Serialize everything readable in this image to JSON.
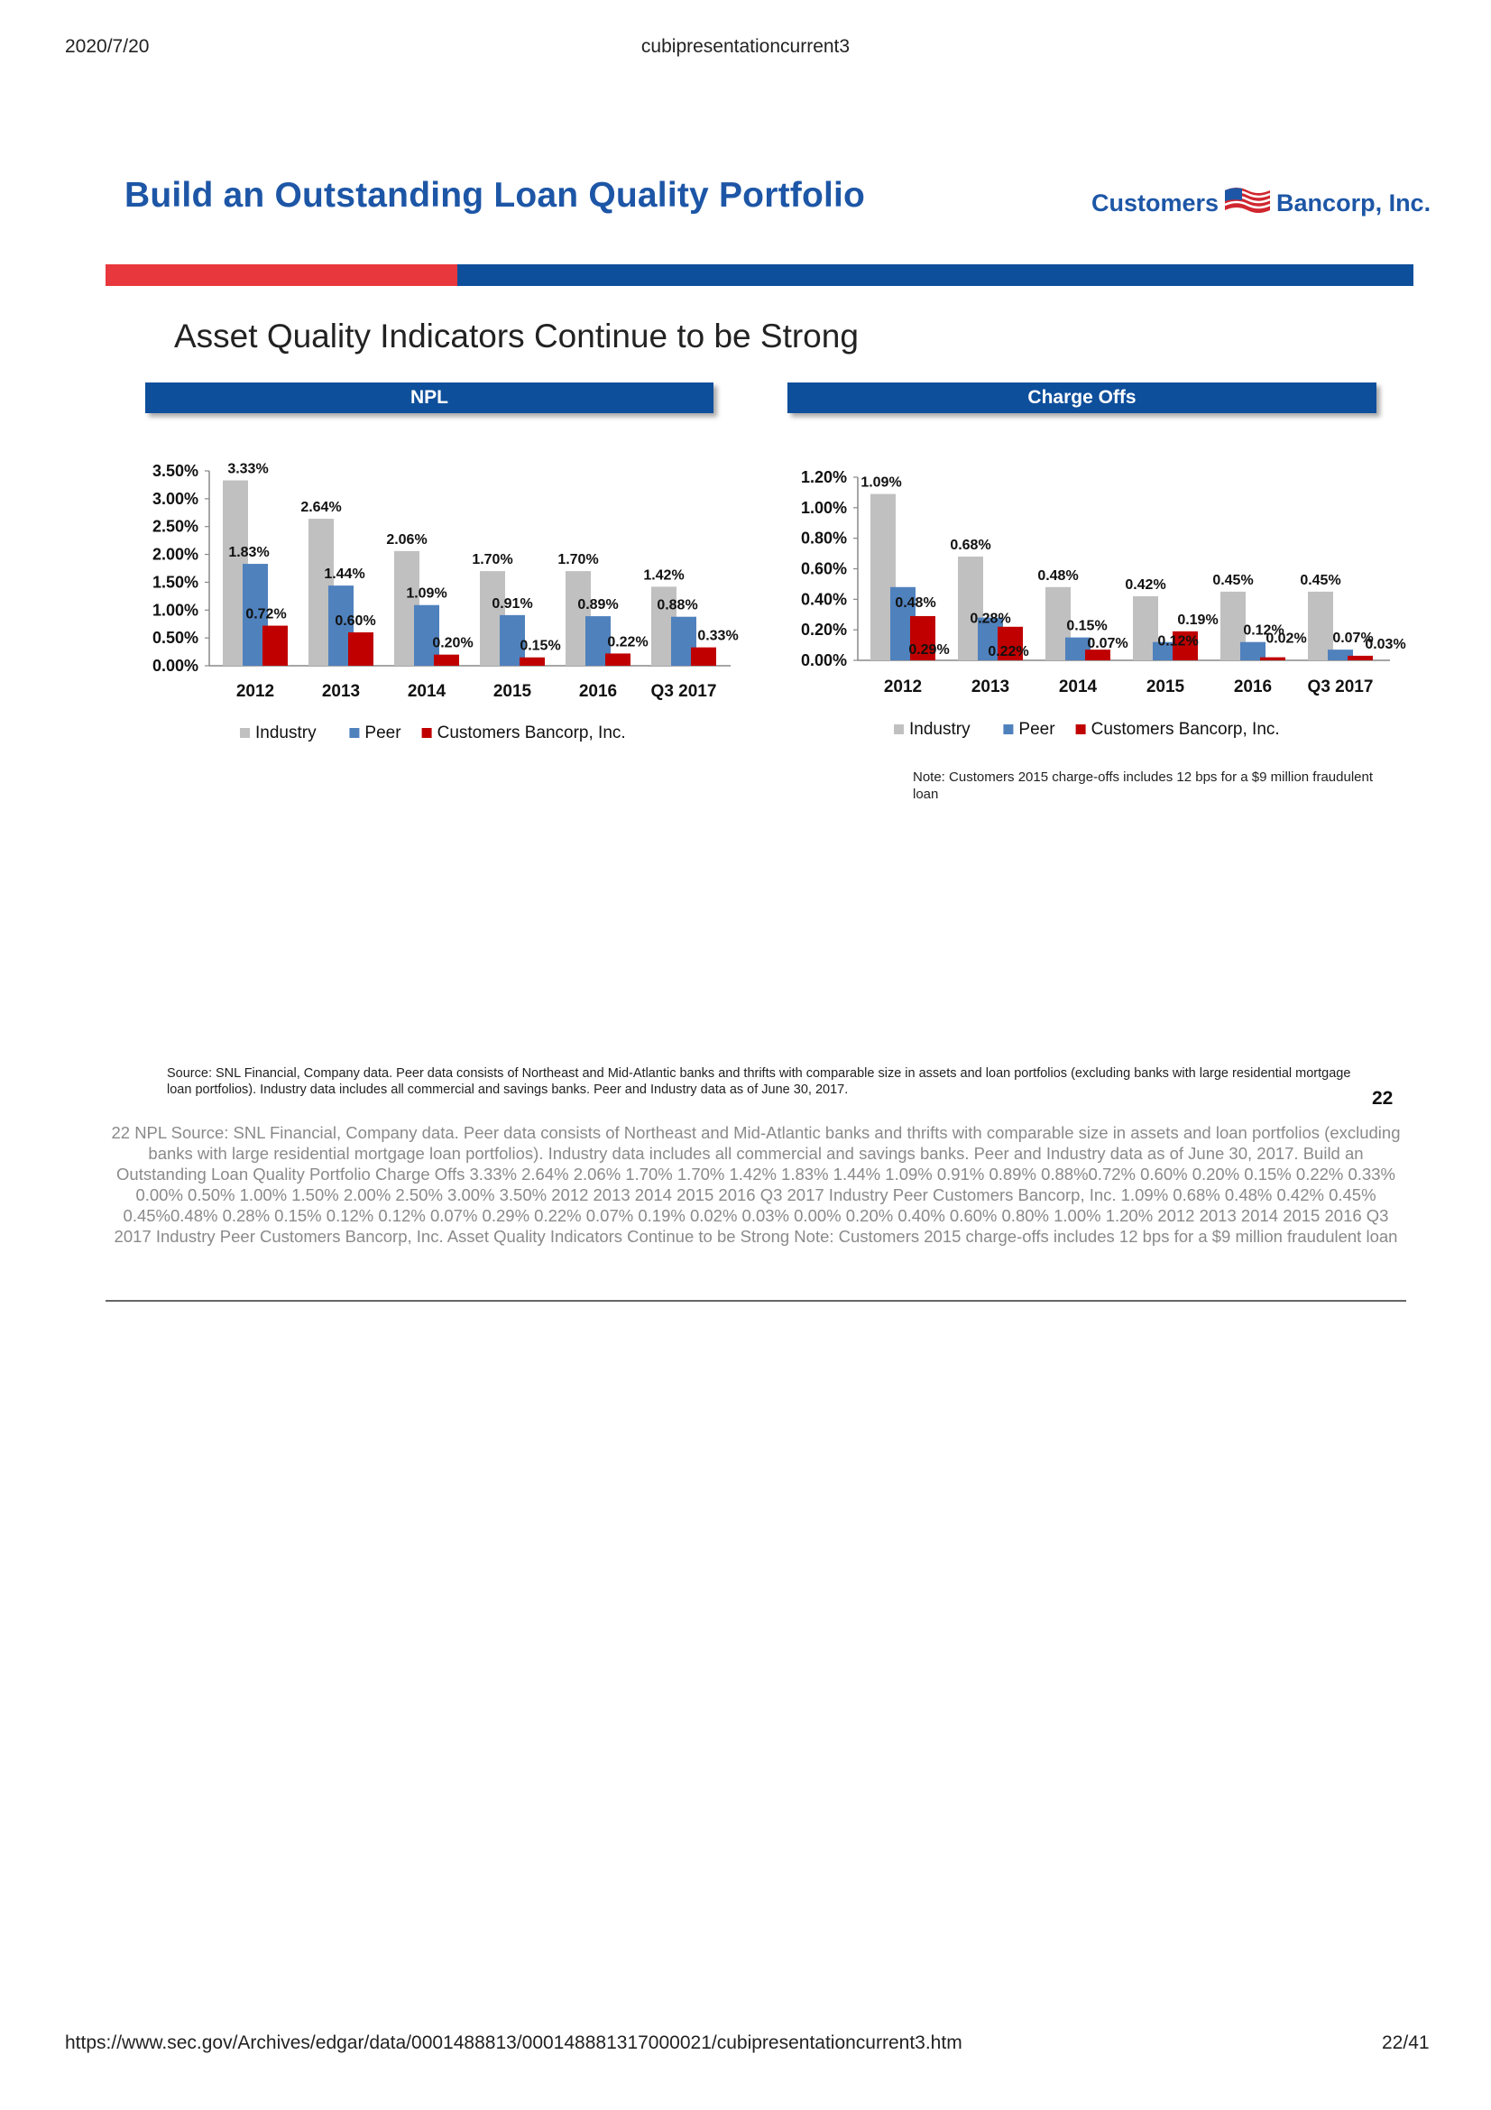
{
  "browser": {
    "date": "2020/7/20",
    "doc_title": "cubipresentationcurrent3",
    "url": "https://www.sec.gov/Archives/edgar/data/0001488813/000148881317000021/cubipresentationcurrent3.htm",
    "page": "22/41"
  },
  "slide": {
    "title": "Build an Outstanding Loan Quality Portfolio",
    "logo_left": "Customers",
    "logo_right": "Bancorp, Inc.",
    "subtitle": "Asset Quality Indicators Continue to be Strong",
    "npl_header": "NPL",
    "co_header": "Charge Offs",
    "note": "Note: Customers 2015 charge-offs includes 12 bps for a $9 million fraudulent loan",
    "source": "Source: SNL Financial, Company data. Peer data consists of Northeast and Mid-Atlantic banks and thrifts with comparable size in assets and loan portfolios (excluding banks with large residential mortgage loan portfolios). Industry data includes all commercial and savings banks.    Peer and Industry data as of June 30, 2017.",
    "page_number": "22"
  },
  "alt_text": "22  NPL  Source: SNL Financial, Company data. Peer data consists of Northeast and Mid-Atlantic banks and thrifts with comparable size in assets and loan portfolios (excluding banks with large  residential mortgage loan portfolios). Industry data includes all commercial and savings banks. Peer and Industry data as of June 30, 2017.   Build an Outstanding Loan Quality Portfolio  Charge Offs  3.33% 2.64% 2.06% 1.70% 1.70% 1.42% 1.83% 1.44% 1.09% 0.91% 0.89% 0.88%0.72% 0.60% 0.20% 0.15% 0.22% 0.33% 0.00% 0.50% 1.00% 1.50% 2.00% 2.50% 3.00% 3.50% 2012 2013 2014 2015 2016 Q3 2017 Industry Peer Customers Bancorp, Inc. 1.09% 0.68% 0.48% 0.42% 0.45% 0.45%0.48% 0.28% 0.15% 0.12% 0.12% 0.07% 0.29% 0.22% 0.07% 0.19% 0.02% 0.03% 0.00% 0.20% 0.40% 0.60% 0.80% 1.00% 1.20% 2012 2013 2014 2015 2016 Q3 2017 Industry Peer Customers Bancorp, Inc. Asset Quality Indicators Continue to be Strong  Note: Customers 2015 charge-offs includes 12 bps for a $9 million  fraudulent loan",
  "colors": {
    "industry": "#c0c0c0",
    "peer": "#4f81bd",
    "customers": "#c00000",
    "brand_blue": "#0e4f9c",
    "brand_red": "#e8383d"
  },
  "chart_data": [
    {
      "type": "bar",
      "name": "NPL",
      "categories": [
        "2012",
        "2013",
        "2014",
        "2015",
        "2016",
        "Q3 2017"
      ],
      "series": [
        {
          "name": "Industry",
          "values": [
            3.33,
            2.64,
            2.06,
            1.7,
            1.7,
            1.42
          ],
          "labels": [
            "3.33%",
            "2.64%",
            "2.06%",
            "1.70%",
            "1.70%",
            "1.42%"
          ]
        },
        {
          "name": "Peer",
          "values": [
            1.83,
            1.44,
            1.09,
            0.91,
            0.89,
            0.88
          ],
          "labels": [
            "1.83%",
            "1.44%",
            "1.09%",
            "0.91%",
            "0.89%",
            "0.88%"
          ]
        },
        {
          "name": "Customers Bancorp, Inc.",
          "values": [
            0.72,
            0.6,
            0.2,
            0.15,
            0.22,
            0.33
          ],
          "labels": [
            "0.72%",
            "0.60%",
            "0.20%",
            "0.15%",
            "0.22%",
            "0.33%"
          ]
        }
      ],
      "yticks": [
        "0.00%",
        "0.50%",
        "1.00%",
        "1.50%",
        "2.00%",
        "2.50%",
        "3.00%",
        "3.50%"
      ],
      "ylim": [
        0,
        3.5
      ],
      "legend_position": "bottom"
    },
    {
      "type": "bar",
      "name": "Charge Offs",
      "categories": [
        "2012",
        "2013",
        "2014",
        "2015",
        "2016",
        "Q3 2017"
      ],
      "series": [
        {
          "name": "Industry",
          "values": [
            1.09,
            0.68,
            0.48,
            0.42,
            0.45,
            0.45
          ],
          "labels": [
            "1.09%",
            "0.68%",
            "0.48%",
            "0.42%",
            "0.45%",
            "0.45%"
          ]
        },
        {
          "name": "Peer",
          "values": [
            0.48,
            0.28,
            0.15,
            0.12,
            0.12,
            0.07
          ],
          "labels": [
            "0.48%",
            "0.28%",
            "0.15%",
            "0.12%",
            "0.12%",
            "0.07%"
          ]
        },
        {
          "name": "Customers Bancorp, Inc.",
          "values": [
            0.29,
            0.22,
            0.07,
            0.19,
            0.02,
            0.03
          ],
          "labels": [
            "0.29%",
            "0.22%",
            "0.07%",
            "0.19%",
            "0.02%",
            "0.03%"
          ]
        }
      ],
      "yticks": [
        "0.00%",
        "0.20%",
        "0.40%",
        "0.60%",
        "0.80%",
        "1.00%",
        "1.20%"
      ],
      "ylim": [
        0,
        1.2
      ],
      "legend_position": "bottom"
    }
  ]
}
